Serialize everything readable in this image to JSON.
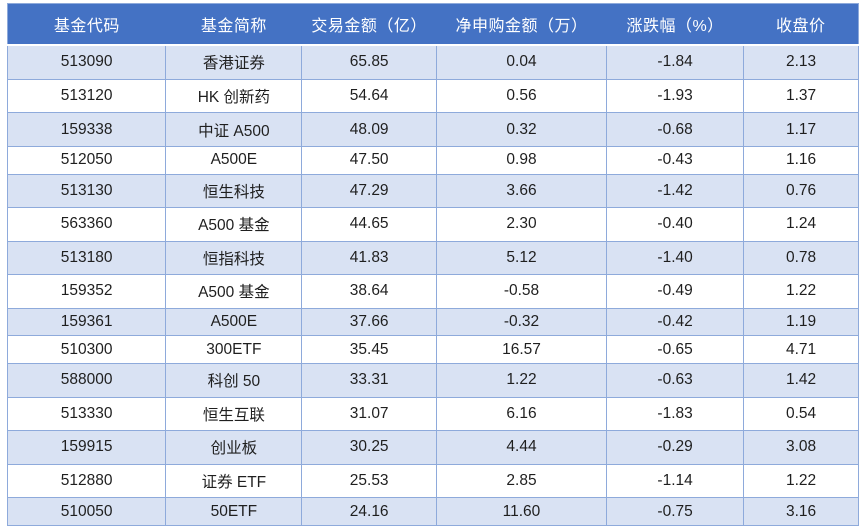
{
  "colors": {
    "header_bg": "#4472C4",
    "header_text": "#FFFFFF",
    "band_row_bg": "#D9E2F3",
    "plain_row_bg": "#FFFFFF",
    "border": "#8EAADB",
    "cell_text": "#1F1F1F"
  },
  "chart_data": {
    "type": "table",
    "title": "",
    "columns": [
      "基金代码",
      "基金简称",
      "交易金额（亿）",
      "净申购金额（万）",
      "涨跌幅（%）",
      "收盘价"
    ],
    "rows": [
      [
        "513090",
        "香港证券",
        "65.85",
        "0.04",
        "-1.84",
        "2.13"
      ],
      [
        "513120",
        "HK 创新药",
        "54.64",
        "0.56",
        "-1.93",
        "1.37"
      ],
      [
        "159338",
        "中证 A500",
        "48.09",
        "0.32",
        "-0.68",
        "1.17"
      ],
      [
        "512050",
        "A500E",
        "47.50",
        "0.98",
        "-0.43",
        "1.16"
      ],
      [
        "513130",
        "恒生科技",
        "47.29",
        "3.66",
        "-1.42",
        "0.76"
      ],
      [
        "563360",
        "A500 基金",
        "44.65",
        "2.30",
        "-0.40",
        "1.24"
      ],
      [
        "513180",
        "恒指科技",
        "41.83",
        "5.12",
        "-1.40",
        "0.78"
      ],
      [
        "159352",
        "A500 基金",
        "38.64",
        "-0.58",
        "-0.49",
        "1.22"
      ],
      [
        "159361",
        "A500E",
        "37.66",
        "-0.32",
        "-0.42",
        "1.19"
      ],
      [
        "510300",
        "300ETF",
        "35.45",
        "16.57",
        "-0.65",
        "4.71"
      ],
      [
        "588000",
        "科创 50",
        "33.31",
        "1.22",
        "-0.63",
        "1.42"
      ],
      [
        "513330",
        "恒生互联",
        "31.07",
        "6.16",
        "-1.83",
        "0.54"
      ],
      [
        "159915",
        "创业板",
        "30.25",
        "4.44",
        "-0.29",
        "3.08"
      ],
      [
        "512880",
        "证券 ETF",
        "25.53",
        "2.85",
        "-1.14",
        "1.22"
      ],
      [
        "510050",
        "50ETF",
        "24.16",
        "11.60",
        "-0.75",
        "3.16"
      ]
    ],
    "column_keys": [
      "code",
      "name",
      "amount",
      "net",
      "change",
      "close"
    ],
    "layout": {
      "banded_rows": true,
      "header_style": "solid-blue",
      "alignment": "center"
    }
  }
}
